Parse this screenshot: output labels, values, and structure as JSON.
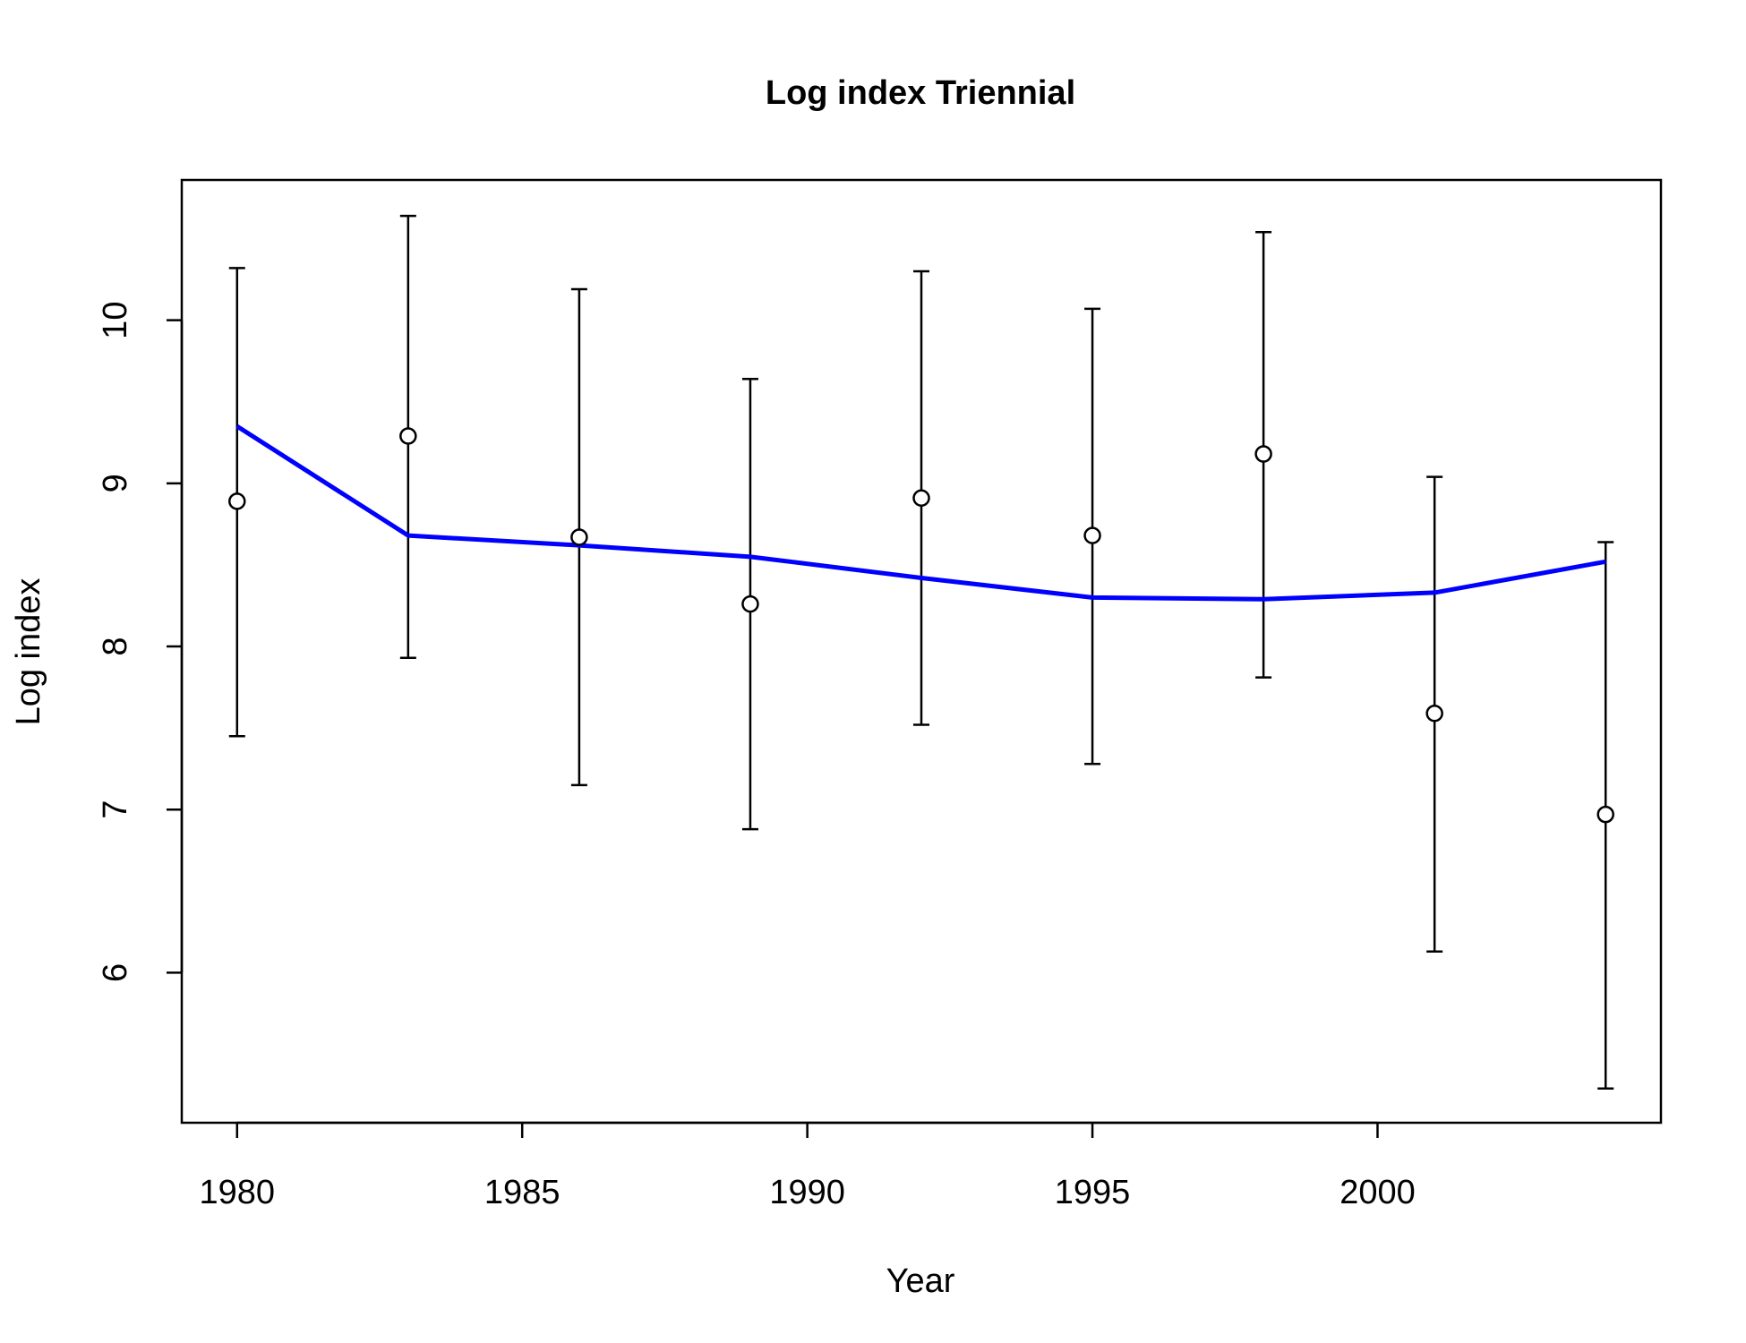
{
  "chart_data": {
    "type": "line",
    "title": "Log index Triennial",
    "xlabel": "Year",
    "ylabel": "Log index",
    "xlim": [
      1979.03,
      2004.97
    ],
    "ylim": [
      5.08,
      10.86
    ],
    "x_ticks": [
      1980,
      1985,
      1990,
      1995,
      2000
    ],
    "y_ticks": [
      6,
      7,
      8,
      9,
      10
    ],
    "grid": false,
    "colors": {
      "fit_line": "#0000ff",
      "points": "#000000",
      "error_bars": "#000000",
      "frame": "#000000"
    },
    "observed": {
      "x": [
        1980,
        1983,
        1986,
        1989,
        1992,
        1995,
        1998,
        2001,
        2004
      ],
      "y": [
        8.89,
        9.29,
        8.67,
        8.26,
        8.91,
        8.68,
        9.18,
        7.59,
        6.97
      ],
      "lower": [
        7.45,
        7.93,
        7.15,
        6.88,
        7.52,
        7.28,
        7.81,
        6.13,
        5.29
      ],
      "upper": [
        10.32,
        10.64,
        10.19,
        9.64,
        10.3,
        10.07,
        10.54,
        9.04,
        8.64
      ]
    },
    "fitted": {
      "x": [
        1980,
        1983,
        1986,
        1989,
        1992,
        1995,
        1998,
        2001,
        2004
      ],
      "y": [
        9.35,
        8.68,
        8.62,
        8.55,
        8.42,
        8.3,
        8.29,
        8.33,
        8.52
      ]
    }
  }
}
